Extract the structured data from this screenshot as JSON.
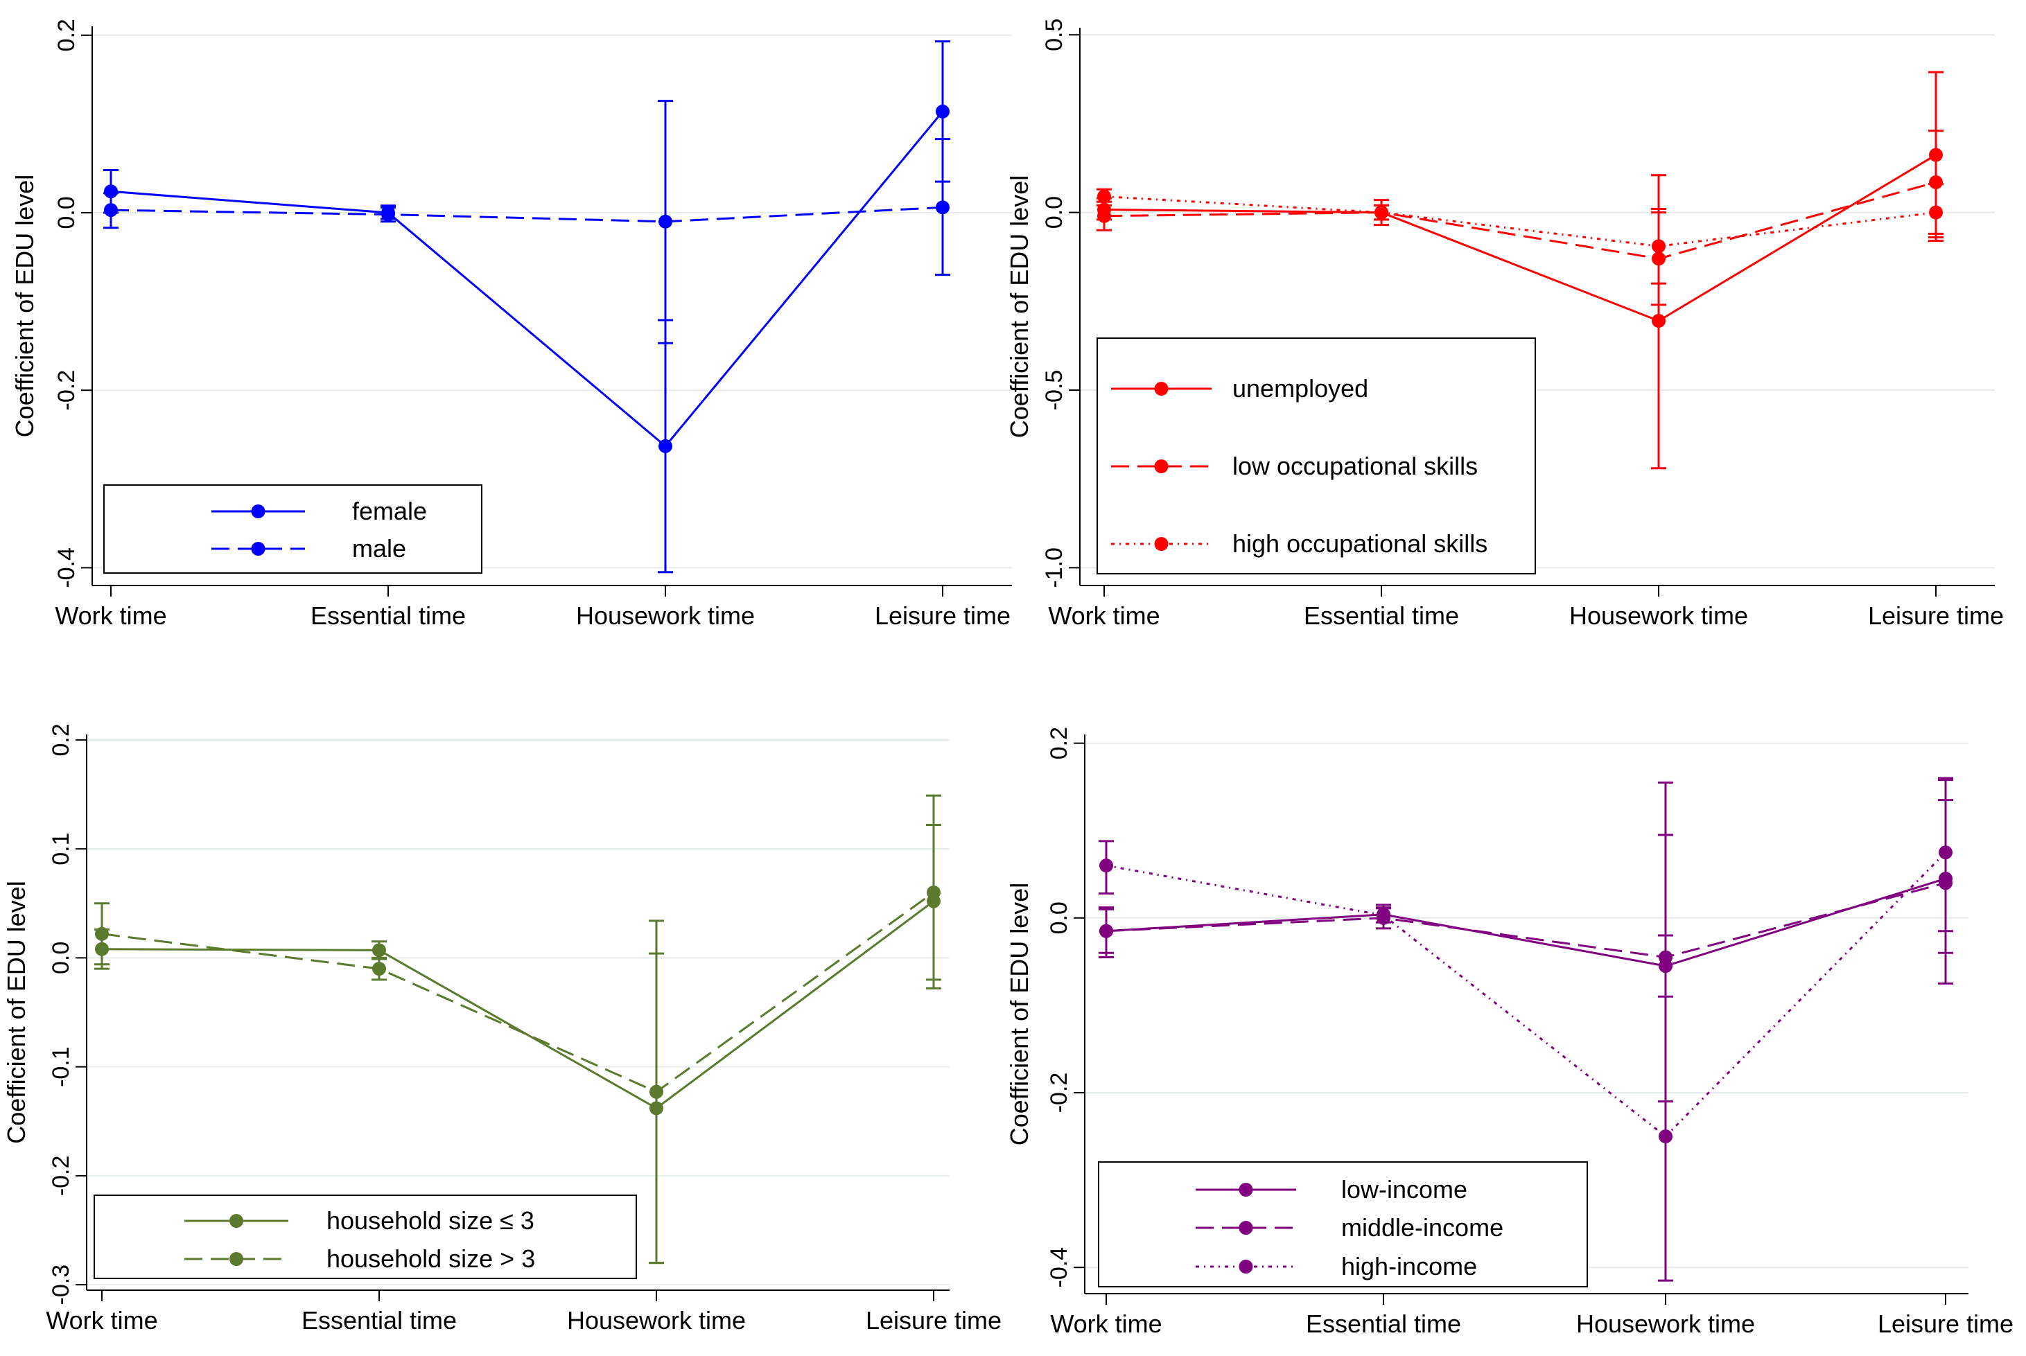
{
  "chart_data": [
    {
      "type": "line",
      "panel": "top-left",
      "title": "",
      "xlabel": "",
      "ylabel": "Coefficient of EDU level",
      "categories": [
        "Work time",
        "Essential time",
        "Housework time",
        "Leisure time"
      ],
      "ylim": [
        -0.42,
        0.21
      ],
      "yticks": [
        0.2,
        0.0,
        -0.2,
        -0.4
      ],
      "ytick_labels": [
        "0.2",
        "0.0",
        "-0.2",
        "-0.4"
      ],
      "grid": true,
      "legend_position": "bottom-left",
      "series": [
        {
          "name": "female",
          "style": "solid",
          "color": "#0000ff",
          "values": [
            0.024,
            0.0,
            -0.263,
            0.114
          ],
          "ci_low": [
            0.0,
            -0.007,
            -0.405,
            0.035
          ],
          "ci_high": [
            0.048,
            0.008,
            -0.121,
            0.193
          ]
        },
        {
          "name": "male",
          "style": "dashed",
          "color": "#0000ff",
          "values": [
            0.003,
            -0.002,
            -0.01,
            0.006
          ],
          "ci_low": [
            -0.017,
            -0.01,
            -0.147,
            -0.07
          ],
          "ci_high": [
            0.022,
            0.006,
            0.126,
            0.083
          ]
        }
      ]
    },
    {
      "type": "line",
      "panel": "top-right",
      "title": "",
      "xlabel": "",
      "ylabel": "Coefficient of EDU level",
      "categories": [
        "Work time",
        "Essential time",
        "Housework time",
        "Leisure time"
      ],
      "ylim": [
        -1.05,
        0.52
      ],
      "yticks": [
        0.5,
        0.0,
        -0.5,
        -1.0
      ],
      "ytick_labels": [
        "0.5",
        "0.0",
        "-0.5",
        "-1.0"
      ],
      "grid": true,
      "legend_position": "bottom-left",
      "series": [
        {
          "name": "unemployed",
          "style": "solid",
          "color": "#ff0000",
          "values": [
            0.008,
            0.0,
            -0.305,
            0.162
          ],
          "ci_low": [
            -0.02,
            -0.035,
            -0.72,
            -0.07
          ],
          "ci_high": [
            0.04,
            0.035,
            0.105,
            0.395
          ]
        },
        {
          "name": "low occupational skills",
          "style": "dashed",
          "color": "#ff0000",
          "values": [
            -0.01,
            0.0,
            -0.13,
            0.085
          ],
          "ci_low": [
            -0.05,
            -0.02,
            -0.26,
            -0.06
          ],
          "ci_high": [
            0.03,
            0.02,
            0.0,
            0.23
          ]
        },
        {
          "name": "high occupational skills",
          "style": "dotted",
          "color": "#ff0000",
          "values": [
            0.045,
            0.0,
            -0.095,
            0.0
          ],
          "ci_low": [
            0.02,
            -0.02,
            -0.2,
            -0.08
          ],
          "ci_high": [
            0.065,
            0.02,
            0.01,
            0.08
          ]
        }
      ]
    },
    {
      "type": "line",
      "panel": "bottom-left",
      "title": "",
      "xlabel": "",
      "ylabel": "Coefficient of EDU level",
      "categories": [
        "Work time",
        "Essential time",
        "Housework time",
        "Leisure time"
      ],
      "ylim": [
        -0.305,
        0.205
      ],
      "yticks": [
        0.2,
        0.1,
        0.0,
        -0.1,
        -0.2,
        -0.3
      ],
      "ytick_labels": [
        "0.2",
        "0.1",
        "0.0",
        "-0.1",
        "-0.2",
        "-0.3"
      ],
      "grid": true,
      "legend_position": "bottom-left",
      "series": [
        {
          "name": "household size ≤ 3",
          "style": "solid",
          "color": "#5b7a2e",
          "values": [
            0.008,
            0.007,
            -0.138,
            0.052
          ],
          "ci_low": [
            -0.01,
            -0.001,
            -0.28,
            -0.028
          ],
          "ci_high": [
            0.026,
            0.015,
            0.004,
            0.122
          ]
        },
        {
          "name": "household size > 3",
          "style": "dashed",
          "color": "#5b7a2e",
          "values": [
            0.022,
            -0.01,
            -0.123,
            0.06
          ],
          "ci_low": [
            -0.006,
            -0.02,
            -0.28,
            -0.02
          ],
          "ci_high": [
            0.05,
            0.0,
            0.034,
            0.149
          ]
        }
      ]
    },
    {
      "type": "line",
      "panel": "bottom-right",
      "title": "",
      "xlabel": "",
      "ylabel": "Coefficient of EDU level",
      "categories": [
        "Work time",
        "Essential time",
        "Housework time",
        "Leisure time"
      ],
      "ylim": [
        -0.43,
        0.21
      ],
      "yticks": [
        0.2,
        0.0,
        -0.2,
        -0.4
      ],
      "ytick_labels": [
        "0.2",
        "0.0",
        "-0.2",
        "-0.4"
      ],
      "grid": true,
      "legend_position": "bottom-left",
      "series": [
        {
          "name": "low-income",
          "style": "solid",
          "color": "#800080",
          "values": [
            -0.015,
            0.004,
            -0.055,
            0.045
          ],
          "ci_low": [
            -0.04,
            -0.005,
            -0.09,
            -0.015
          ],
          "ci_high": [
            0.012,
            0.015,
            -0.02,
            0.135
          ]
        },
        {
          "name": "middle-income",
          "style": "dashed",
          "color": "#800080",
          "values": [
            -0.015,
            0.0,
            -0.045,
            0.04
          ],
          "ci_low": [
            -0.045,
            -0.012,
            -0.21,
            -0.075
          ],
          "ci_high": [
            0.01,
            0.012,
            0.095,
            0.16
          ]
        },
        {
          "name": "high-income",
          "style": "dotted",
          "color": "#800080",
          "values": [
            0.06,
            0.003,
            -0.25,
            0.075
          ],
          "ci_low": [
            0.028,
            -0.005,
            -0.415,
            -0.04
          ],
          "ci_high": [
            0.088,
            0.011,
            0.155,
            0.158
          ]
        }
      ]
    }
  ]
}
